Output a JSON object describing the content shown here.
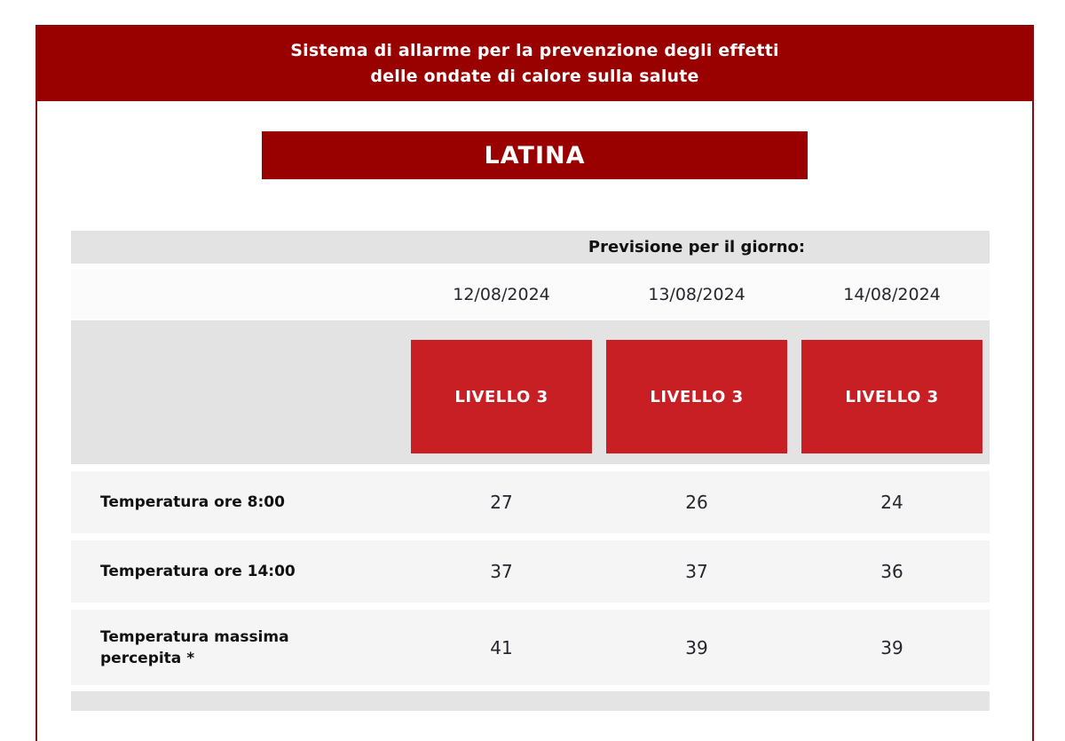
{
  "header": {
    "title_line1": "Sistema di allarme per la prevenzione degli effetti",
    "title_line2": "delle ondate di calore sulla salute"
  },
  "city": {
    "name": "LATINA"
  },
  "forecast": {
    "heading": "Previsione per il giorno:",
    "dates": [
      "12/08/2024",
      "13/08/2024",
      "14/08/2024"
    ],
    "levels": [
      "LIVELLO 3",
      "LIVELLO 3",
      "LIVELLO 3"
    ],
    "rows": [
      {
        "label": "Temperatura ore 8:00",
        "values": [
          "27",
          "26",
          "24"
        ]
      },
      {
        "label": "Temperatura ore 14:00",
        "values": [
          "37",
          "37",
          "36"
        ]
      },
      {
        "label": "Temperatura massima percepita *",
        "values": [
          "41",
          "39",
          "39"
        ]
      }
    ]
  },
  "colors": {
    "banner_red": "#990000",
    "level_red": "#c81f25",
    "border_red": "#7d1013",
    "row_gray": "#e3e3e3",
    "row_light": "#f5f5f5"
  }
}
